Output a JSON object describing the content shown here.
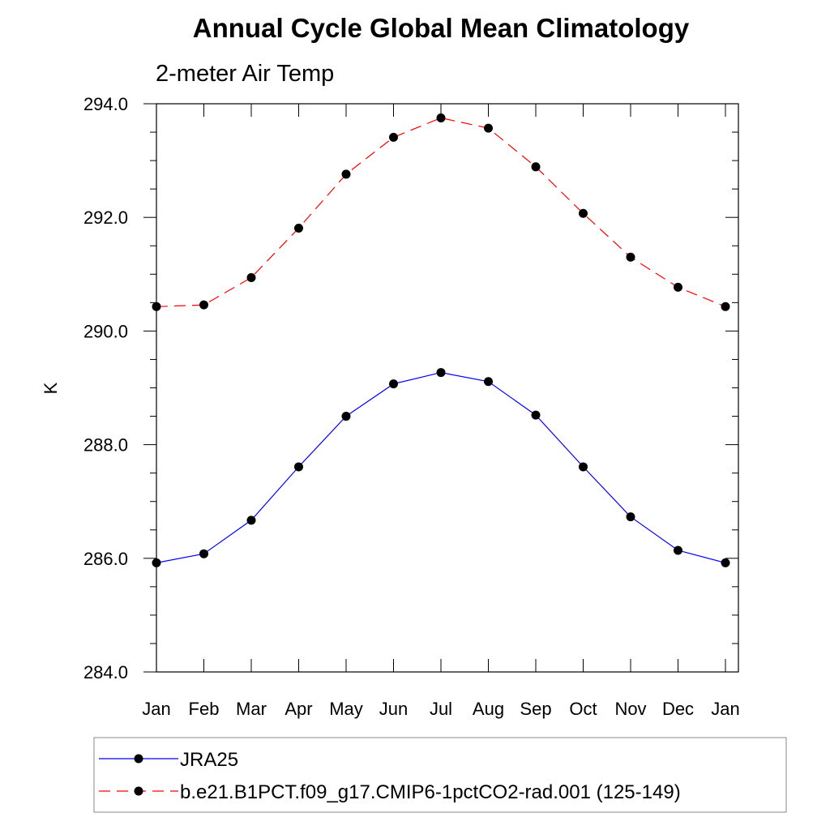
{
  "chart_data": {
    "type": "line",
    "title": "Annual Cycle Global Mean Climatology",
    "subtitle": "2-meter Air Temp",
    "xlabel": "",
    "ylabel": "K",
    "categories": [
      "Jan",
      "Feb",
      "Mar",
      "Apr",
      "May",
      "Jun",
      "Jul",
      "Aug",
      "Sep",
      "Oct",
      "Nov",
      "Dec",
      "Jan"
    ],
    "ylim": [
      284.0,
      294.0
    ],
    "yticks": [
      "284.0",
      "286.0",
      "288.0",
      "290.0",
      "292.0",
      "294.0"
    ],
    "ytick_values": [
      284,
      286,
      288,
      290,
      292,
      294
    ],
    "grid": false,
    "legend_position": "bottom",
    "series": [
      {
        "name": "JRA25",
        "color": "#0000ff",
        "dash": "solid",
        "marker": "filled-circle",
        "values": [
          285.92,
          286.08,
          286.67,
          287.61,
          288.5,
          289.07,
          289.27,
          289.11,
          288.52,
          287.61,
          286.73,
          286.14,
          285.92
        ]
      },
      {
        "name": "b.e21.B1PCT.f09_g17.CMIP6-1pctCO2-rad.001 (125-149)",
        "color": "#ff0000",
        "dash": "dashed",
        "marker": "filled-circle",
        "values": [
          290.43,
          290.46,
          290.94,
          291.81,
          292.76,
          293.41,
          293.75,
          293.57,
          292.89,
          292.07,
          291.3,
          290.77,
          290.43
        ]
      }
    ]
  }
}
